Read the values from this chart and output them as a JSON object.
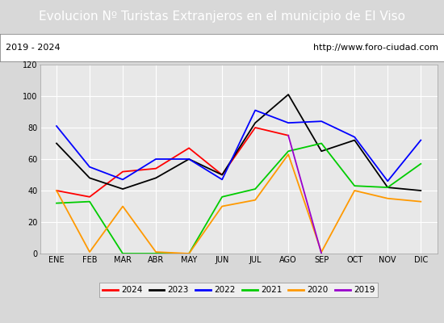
{
  "title": "Evolucion Nº Turistas Extranjeros en el municipio de El Viso",
  "subtitle_left": "2019 - 2024",
  "subtitle_right": "http://www.foro-ciudad.com",
  "months": [
    "ENE",
    "FEB",
    "MAR",
    "ABR",
    "MAY",
    "JUN",
    "JUL",
    "AGO",
    "SEP",
    "OCT",
    "NOV",
    "DIC"
  ],
  "series": {
    "2024": {
      "color": "#ff0000",
      "data": [
        40,
        36,
        52,
        54,
        67,
        50,
        80,
        75,
        null,
        null,
        null,
        null
      ]
    },
    "2023": {
      "color": "#000000",
      "data": [
        70,
        48,
        41,
        48,
        60,
        50,
        83,
        101,
        65,
        72,
        42,
        40
      ]
    },
    "2022": {
      "color": "#0000ff",
      "data": [
        81,
        55,
        47,
        60,
        60,
        47,
        91,
        83,
        84,
        74,
        46,
        72
      ]
    },
    "2021": {
      "color": "#00cc00",
      "data": [
        32,
        33,
        0,
        0,
        0,
        36,
        41,
        65,
        70,
        43,
        42,
        57
      ]
    },
    "2020": {
      "color": "#ff9900",
      "data": [
        40,
        1,
        30,
        1,
        0,
        30,
        34,
        63,
        1,
        40,
        35,
        33
      ]
    },
    "2019": {
      "color": "#9900cc",
      "data": [
        null,
        null,
        null,
        null,
        null,
        null,
        null,
        75,
        0,
        null,
        null,
        null
      ]
    }
  },
  "ylim": [
    0,
    120
  ],
  "yticks": [
    0,
    20,
    40,
    60,
    80,
    100,
    120
  ],
  "background_color": "#d8d8d8",
  "plot_bg_color": "#e8e8e8",
  "title_bg_color": "#4472c4",
  "title_color": "#ffffff",
  "grid_color": "#ffffff",
  "title_fontsize": 11,
  "subtitle_fontsize": 8,
  "tick_fontsize": 7,
  "legend_order": [
    "2024",
    "2023",
    "2022",
    "2021",
    "2020",
    "2019"
  ]
}
